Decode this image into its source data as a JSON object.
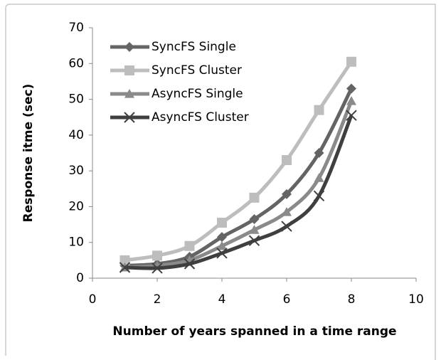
{
  "chart_data": {
    "type": "line",
    "xlabel": "Number of years spanned in a time range",
    "ylabel": "Response itme (sec)",
    "x": [
      1,
      2,
      3,
      4,
      5,
      6,
      7,
      8
    ],
    "series": [
      {
        "name": "SyncFS Single",
        "color": "#646464",
        "marker": "diamond",
        "values": [
          3.5,
          4,
          6,
          11.5,
          16.5,
          23.5,
          35,
          53
        ]
      },
      {
        "name": "SyncFS Cluster",
        "color": "#bdbdbd",
        "marker": "square",
        "values": [
          5,
          6.3,
          9,
          15.5,
          22.5,
          33,
          47,
          60.5
        ]
      },
      {
        "name": "AsyncFS Single",
        "color": "#8a8a8a",
        "marker": "triangle",
        "values": [
          3,
          3.5,
          5,
          9,
          13.5,
          18.5,
          28,
          49.5
        ]
      },
      {
        "name": "AsyncFS Cluster",
        "color": "#3f3f3f",
        "marker": "x",
        "values": [
          3,
          2.8,
          4,
          7,
          10.5,
          14.5,
          23,
          45.5
        ]
      }
    ],
    "xlim": [
      0,
      10
    ],
    "xticks": [
      0,
      2,
      4,
      6,
      8,
      10
    ],
    "ylim": [
      0,
      70
    ],
    "yticks": [
      0,
      10,
      20,
      30,
      40,
      50,
      60,
      70
    ],
    "grid": false,
    "legend": "upper left"
  }
}
